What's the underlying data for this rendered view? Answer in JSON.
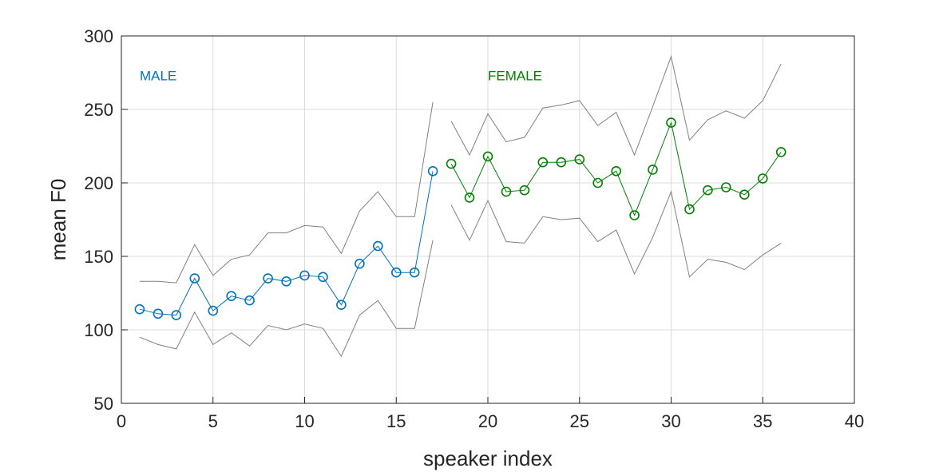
{
  "chart_data": {
    "type": "line",
    "xlabel": "speaker index",
    "ylabel": "mean F0",
    "xlim": [
      0,
      40
    ],
    "ylim": [
      50,
      300
    ],
    "xticks": [
      0,
      5,
      10,
      15,
      20,
      25,
      30,
      35,
      40
    ],
    "yticks": [
      50,
      100,
      150,
      200,
      250,
      300
    ],
    "grid": true,
    "colors": {
      "male": "#0072BD",
      "female": "#008000",
      "band": "#808080"
    },
    "annotations": [
      {
        "text": "MALE",
        "x": 1,
        "y": 273,
        "series": "male"
      },
      {
        "text": "FEMALE",
        "x": 20,
        "y": 273,
        "series": "female"
      }
    ],
    "series": [
      {
        "group": "male",
        "x": [
          1,
          2,
          3,
          4,
          5,
          6,
          7,
          8,
          9,
          10,
          11,
          12,
          13,
          14,
          15,
          16,
          17
        ],
        "mean": [
          114,
          111,
          110,
          135,
          113,
          123,
          120,
          135,
          133,
          137,
          136,
          117,
          145,
          157,
          139,
          139,
          208
        ],
        "upper": [
          133,
          133,
          132,
          158,
          137,
          148,
          151,
          166,
          166,
          171,
          170,
          152,
          181,
          194,
          177,
          177,
          255
        ],
        "lower": [
          95,
          90,
          87,
          112,
          90,
          98,
          89,
          103,
          100,
          104,
          101,
          82,
          110,
          120,
          101,
          101,
          161
        ]
      },
      {
        "group": "female",
        "x": [
          18,
          19,
          20,
          21,
          22,
          23,
          24,
          25,
          26,
          27,
          28,
          29,
          30,
          31,
          32,
          33,
          34,
          35,
          36
        ],
        "mean": [
          213,
          190,
          218,
          194,
          195,
          214,
          214,
          216,
          200,
          208,
          178,
          209,
          241,
          182,
          195,
          197,
          192,
          203,
          221
        ],
        "upper": [
          242,
          219,
          247,
          228,
          231,
          251,
          253,
          256,
          239,
          248,
          219,
          252,
          286,
          229,
          243,
          249,
          244,
          256,
          281
        ],
        "lower": [
          185,
          161,
          188,
          160,
          159,
          177,
          175,
          176,
          160,
          168,
          138,
          163,
          194,
          136,
          148,
          146,
          141,
          151,
          159
        ]
      }
    ]
  }
}
